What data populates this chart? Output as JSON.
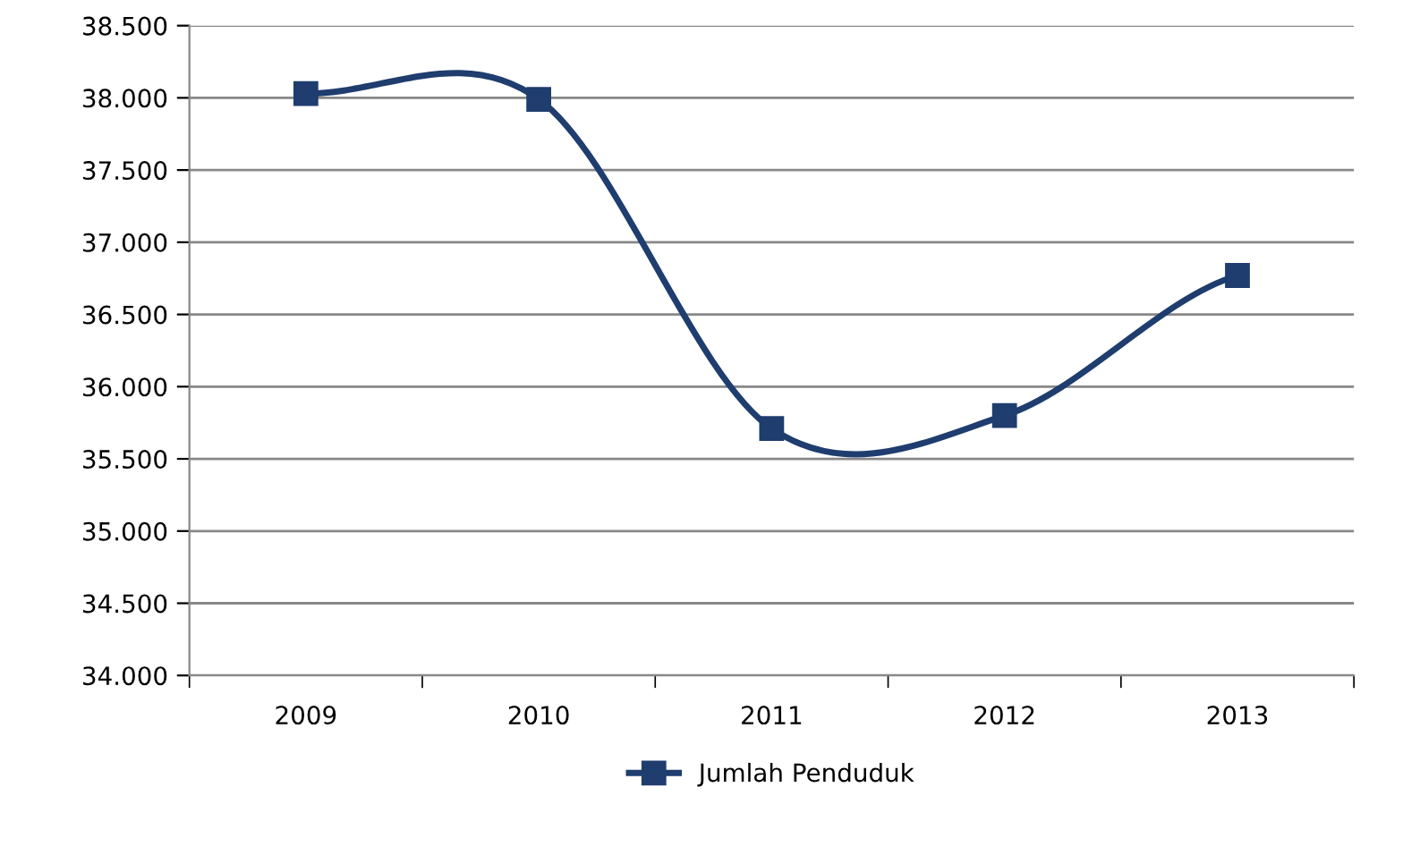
{
  "chart_data": {
    "type": "line",
    "categories": [
      "2009",
      "2010",
      "2011",
      "2012",
      "2013"
    ],
    "series": [
      {
        "name": "Jumlah Penduduk",
        "color": "#1f3d6e",
        "values": [
          38030,
          37990,
          35710,
          35800,
          36770
        ]
      }
    ],
    "ylim": [
      34000,
      38500
    ],
    "yticks": [
      {
        "value": 34000,
        "label": "34.000"
      },
      {
        "value": 34500,
        "label": "34.500"
      },
      {
        "value": 35000,
        "label": "35.000"
      },
      {
        "value": 35500,
        "label": "35.500"
      },
      {
        "value": 36000,
        "label": "36.000"
      },
      {
        "value": 36500,
        "label": "36.500"
      },
      {
        "value": 37000,
        "label": "37.000"
      },
      {
        "value": 37500,
        "label": "37.500"
      },
      {
        "value": 38000,
        "label": "38.000"
      },
      {
        "value": 38500,
        "label": "38.500"
      }
    ],
    "grid": "y",
    "legend": "bottom",
    "marker": "square",
    "line_style": "solid"
  }
}
